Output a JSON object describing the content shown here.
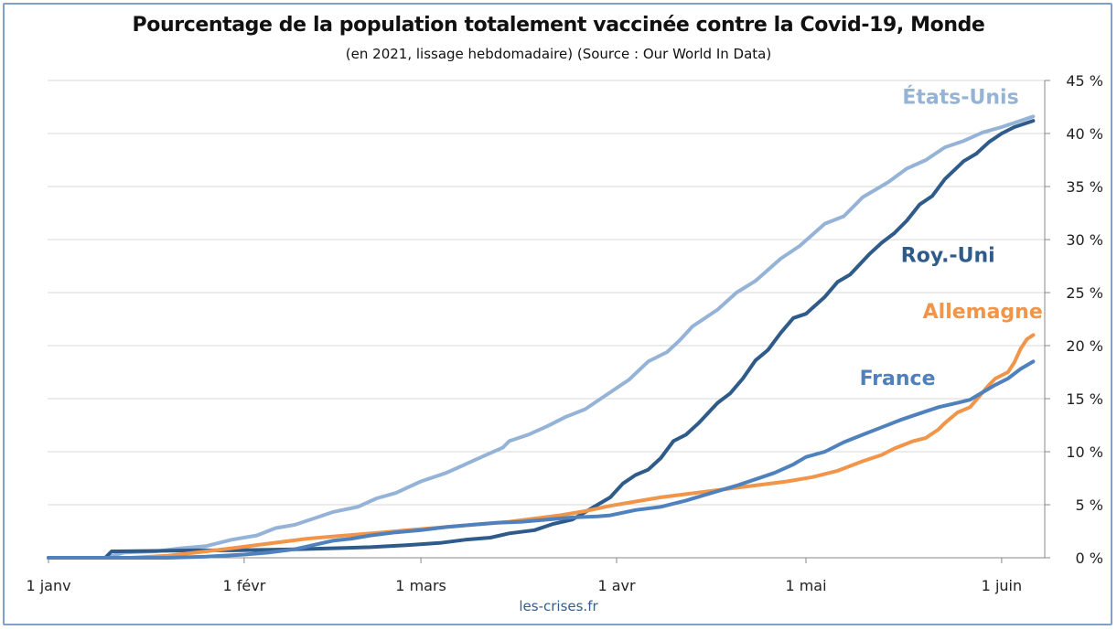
{
  "source_credit": "les-crises.fr",
  "chart_data": {
    "type": "line",
    "title": "Pourcentage de la population totalement vaccinée contre la Covid-19, Monde",
    "subtitle": "(en 2021, lissage hebdomadaire) (Source : Our World In Data)",
    "x_axis": {
      "unit": "day_of_2021",
      "range": [
        1,
        157
      ],
      "ticks": [
        {
          "day": 1,
          "label": "1 janv"
        },
        {
          "day": 32,
          "label": "1 févr"
        },
        {
          "day": 60,
          "label": "1 mars"
        },
        {
          "day": 91,
          "label": "1 avr"
        },
        {
          "day": 121,
          "label": "1 mai"
        },
        {
          "day": 152,
          "label": "1 juin"
        }
      ]
    },
    "y_axis": {
      "position": "right",
      "range": [
        0,
        45
      ],
      "ticks": [
        {
          "value": 0,
          "label": "0 %"
        },
        {
          "value": 5,
          "label": "5 %"
        },
        {
          "value": 10,
          "label": "10 %"
        },
        {
          "value": 15,
          "label": "15 %"
        },
        {
          "value": 20,
          "label": "20 %"
        },
        {
          "value": 25,
          "label": "25 %"
        },
        {
          "value": 30,
          "label": "30 %"
        },
        {
          "value": 35,
          "label": "35 %"
        },
        {
          "value": 40,
          "label": "40 %"
        },
        {
          "value": 45,
          "label": "45 %"
        }
      ],
      "grid": true
    },
    "series": [
      {
        "name": "États-Unis",
        "color": "#95b3d7",
        "points": [
          [
            1,
            0
          ],
          [
            10,
            0
          ],
          [
            13,
            0.5
          ],
          [
            18,
            0.6
          ],
          [
            22,
            0.9
          ],
          [
            26,
            1.1
          ],
          [
            30,
            1.7
          ],
          [
            34,
            2.1
          ],
          [
            37,
            2.8
          ],
          [
            40,
            3.1
          ],
          [
            43,
            3.7
          ],
          [
            46,
            4.3
          ],
          [
            50,
            4.8
          ],
          [
            53,
            5.6
          ],
          [
            56,
            6.1
          ],
          [
            60,
            7.2
          ],
          [
            64,
            8.0
          ],
          [
            67,
            8.8
          ],
          [
            70,
            9.6
          ],
          [
            73,
            10.4
          ],
          [
            74,
            11.0
          ],
          [
            77,
            11.6
          ],
          [
            80,
            12.4
          ],
          [
            83,
            13.3
          ],
          [
            86,
            14.0
          ],
          [
            90,
            15.6
          ],
          [
            93,
            16.8
          ],
          [
            96,
            18.5
          ],
          [
            99,
            19.4
          ],
          [
            101,
            20.5
          ],
          [
            103,
            21.8
          ],
          [
            107,
            23.4
          ],
          [
            110,
            25.0
          ],
          [
            113,
            26.1
          ],
          [
            117,
            28.2
          ],
          [
            120,
            29.4
          ],
          [
            124,
            31.5
          ],
          [
            127,
            32.2
          ],
          [
            130,
            34.0
          ],
          [
            134,
            35.4
          ],
          [
            137,
            36.7
          ],
          [
            140,
            37.5
          ],
          [
            143,
            38.7
          ],
          [
            146,
            39.3
          ],
          [
            149,
            40.1
          ],
          [
            152,
            40.6
          ],
          [
            154,
            41.0
          ],
          [
            157,
            41.6
          ]
        ]
      },
      {
        "name": "Roy.-Uni",
        "color": "#2e5b8a",
        "points": [
          [
            1,
            0
          ],
          [
            10,
            0
          ],
          [
            11,
            0.6
          ],
          [
            18,
            0.65
          ],
          [
            24,
            0.7
          ],
          [
            30,
            0.7
          ],
          [
            36,
            0.75
          ],
          [
            40,
            0.8
          ],
          [
            46,
            0.9
          ],
          [
            52,
            1.0
          ],
          [
            58,
            1.2
          ],
          [
            63,
            1.4
          ],
          [
            67,
            1.7
          ],
          [
            71,
            1.9
          ],
          [
            74,
            2.3
          ],
          [
            78,
            2.6
          ],
          [
            81,
            3.2
          ],
          [
            84,
            3.6
          ],
          [
            86,
            4.3
          ],
          [
            88,
            5.0
          ],
          [
            90,
            5.7
          ],
          [
            92,
            7.0
          ],
          [
            94,
            7.8
          ],
          [
            96,
            8.3
          ],
          [
            98,
            9.4
          ],
          [
            100,
            11.0
          ],
          [
            102,
            11.6
          ],
          [
            104,
            12.7
          ],
          [
            107,
            14.6
          ],
          [
            109,
            15.5
          ],
          [
            111,
            16.9
          ],
          [
            113,
            18.6
          ],
          [
            115,
            19.6
          ],
          [
            117,
            21.2
          ],
          [
            119,
            22.6
          ],
          [
            121,
            23.0
          ],
          [
            124,
            24.6
          ],
          [
            126,
            26.0
          ],
          [
            128,
            26.7
          ],
          [
            131,
            28.6
          ],
          [
            133,
            29.7
          ],
          [
            135,
            30.6
          ],
          [
            137,
            31.8
          ],
          [
            139,
            33.3
          ],
          [
            141,
            34.1
          ],
          [
            143,
            35.7
          ],
          [
            146,
            37.4
          ],
          [
            148,
            38.1
          ],
          [
            150,
            39.2
          ],
          [
            152,
            40.0
          ],
          [
            154,
            40.6
          ],
          [
            157,
            41.2
          ]
        ]
      },
      {
        "name": "Allemagne",
        "color": "#f0954a",
        "points": [
          [
            1,
            0
          ],
          [
            14,
            0
          ],
          [
            20,
            0.2
          ],
          [
            26,
            0.6
          ],
          [
            30,
            0.9
          ],
          [
            34,
            1.2
          ],
          [
            38,
            1.5
          ],
          [
            42,
            1.8
          ],
          [
            46,
            2.0
          ],
          [
            50,
            2.2
          ],
          [
            54,
            2.4
          ],
          [
            58,
            2.6
          ],
          [
            62,
            2.8
          ],
          [
            66,
            3.0
          ],
          [
            70,
            3.2
          ],
          [
            74,
            3.4
          ],
          [
            78,
            3.7
          ],
          [
            82,
            4.0
          ],
          [
            86,
            4.4
          ],
          [
            90,
            4.9
          ],
          [
            94,
            5.3
          ],
          [
            98,
            5.7
          ],
          [
            102,
            6.0
          ],
          [
            106,
            6.3
          ],
          [
            110,
            6.6
          ],
          [
            114,
            6.9
          ],
          [
            118,
            7.2
          ],
          [
            122,
            7.6
          ],
          [
            126,
            8.2
          ],
          [
            130,
            9.1
          ],
          [
            133,
            9.7
          ],
          [
            135,
            10.3
          ],
          [
            138,
            11.0
          ],
          [
            140,
            11.3
          ],
          [
            142,
            12.1
          ],
          [
            143,
            12.7
          ],
          [
            145,
            13.7
          ],
          [
            147,
            14.2
          ],
          [
            148,
            14.9
          ],
          [
            150,
            16.3
          ],
          [
            151,
            16.9
          ],
          [
            153,
            17.5
          ],
          [
            154,
            18.4
          ],
          [
            155,
            19.7
          ],
          [
            156,
            20.6
          ],
          [
            157,
            21.0
          ]
        ]
      },
      {
        "name": "France",
        "color": "#4f81bd",
        "points": [
          [
            1,
            0
          ],
          [
            20,
            0
          ],
          [
            26,
            0.1
          ],
          [
            32,
            0.3
          ],
          [
            36,
            0.5
          ],
          [
            40,
            0.8
          ],
          [
            43,
            1.2
          ],
          [
            46,
            1.6
          ],
          [
            49,
            1.8
          ],
          [
            52,
            2.1
          ],
          [
            56,
            2.4
          ],
          [
            60,
            2.6
          ],
          [
            64,
            2.9
          ],
          [
            68,
            3.1
          ],
          [
            72,
            3.3
          ],
          [
            76,
            3.4
          ],
          [
            80,
            3.6
          ],
          [
            84,
            3.8
          ],
          [
            88,
            3.9
          ],
          [
            90,
            4.0
          ],
          [
            94,
            4.5
          ],
          [
            98,
            4.8
          ],
          [
            102,
            5.4
          ],
          [
            106,
            6.1
          ],
          [
            110,
            6.8
          ],
          [
            113,
            7.4
          ],
          [
            116,
            8.0
          ],
          [
            119,
            8.8
          ],
          [
            121,
            9.5
          ],
          [
            124,
            10.0
          ],
          [
            127,
            10.9
          ],
          [
            130,
            11.6
          ],
          [
            133,
            12.3
          ],
          [
            136,
            13.0
          ],
          [
            139,
            13.6
          ],
          [
            142,
            14.2
          ],
          [
            145,
            14.6
          ],
          [
            147,
            14.9
          ],
          [
            149,
            15.6
          ],
          [
            151,
            16.3
          ],
          [
            153,
            16.9
          ],
          [
            155,
            17.8
          ],
          [
            157,
            18.5
          ]
        ]
      }
    ],
    "series_labels": [
      {
        "series": "États-Unis",
        "text": "États-Unis",
        "at_day": 145.5,
        "at_value": 42.8
      },
      {
        "series": "Roy.-Uni",
        "text": "Roy.-Uni",
        "at_day": 143.5,
        "at_value": 27.9
      },
      {
        "series": "Allemagne",
        "text": "Allemagne",
        "at_day": 149,
        "at_value": 22.6
      },
      {
        "series": "France",
        "text": "France",
        "at_day": 135.5,
        "at_value": 16.3
      }
    ]
  }
}
